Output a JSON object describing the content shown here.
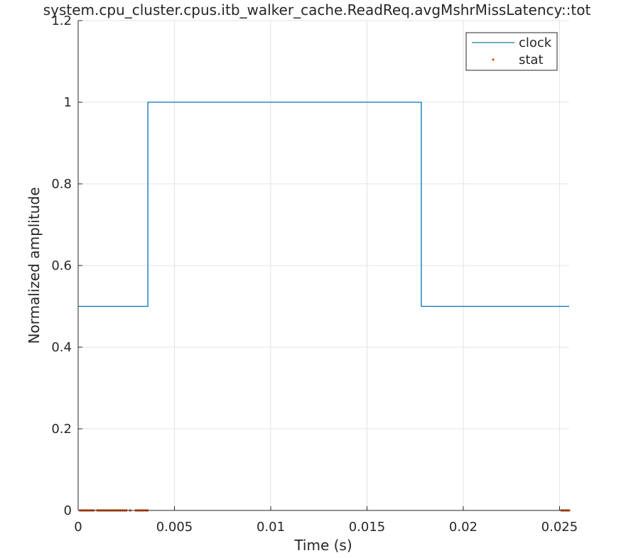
{
  "chart_data": {
    "type": "line",
    "title": "system.cpu_cluster.cpus.itb_walker_cache.ReadReq.avgMshrMissLatency::tot",
    "xlabel": "Time (s)",
    "ylabel": "Normalized amplitude",
    "xlim": [
      0,
      0.0255
    ],
    "ylim": [
      0,
      1.2
    ],
    "xticks": [
      0,
      0.005,
      0.01,
      0.015,
      0.02,
      0.025
    ],
    "xtick_labels": [
      "0",
      "0.005",
      "0.01",
      "0.015",
      "0.02",
      "0.025"
    ],
    "yticks": [
      0,
      0.2,
      0.4,
      0.6,
      0.8,
      1,
      1.2
    ],
    "ytick_labels": [
      "0",
      "0.2",
      "0.4",
      "0.6",
      "0.8",
      "1",
      "1.2"
    ],
    "grid": true,
    "legend_location": "top-right",
    "series": [
      {
        "name": "clock",
        "style": "line",
        "color": "#0072BD",
        "legend_color": "#1a7f84",
        "x": [
          0,
          0.00362,
          0.00362,
          0.01782,
          0.01782,
          0.0255
        ],
        "y": [
          0.5,
          0.5,
          1,
          1,
          0.5,
          0.5
        ]
      },
      {
        "name": "stat",
        "style": "markers",
        "color": "#D95319",
        "x": [
          0.0001,
          0.0002,
          0.0003,
          0.0004,
          0.0005,
          0.0006,
          0.0007,
          0.0008,
          0.001,
          0.0011,
          0.0012,
          0.0013,
          0.0014,
          0.0015,
          0.0016,
          0.0017,
          0.0018,
          0.0019,
          0.002,
          0.0021,
          0.0022,
          0.0023,
          0.0024,
          0.0025,
          0.0027,
          0.003,
          0.0031,
          0.0032,
          0.0033,
          0.0034,
          0.0035,
          0.0036,
          0.0251,
          0.0252,
          0.0253,
          0.0254,
          0.0255
        ],
        "y": [
          0,
          0,
          0,
          0,
          0,
          0,
          0,
          0,
          0,
          0,
          0,
          0,
          0,
          0,
          0,
          0,
          0,
          0,
          0,
          0,
          0,
          0,
          0,
          0,
          0,
          0,
          0,
          0,
          0,
          0,
          0,
          0,
          0,
          0,
          0,
          0,
          0
        ]
      }
    ]
  }
}
